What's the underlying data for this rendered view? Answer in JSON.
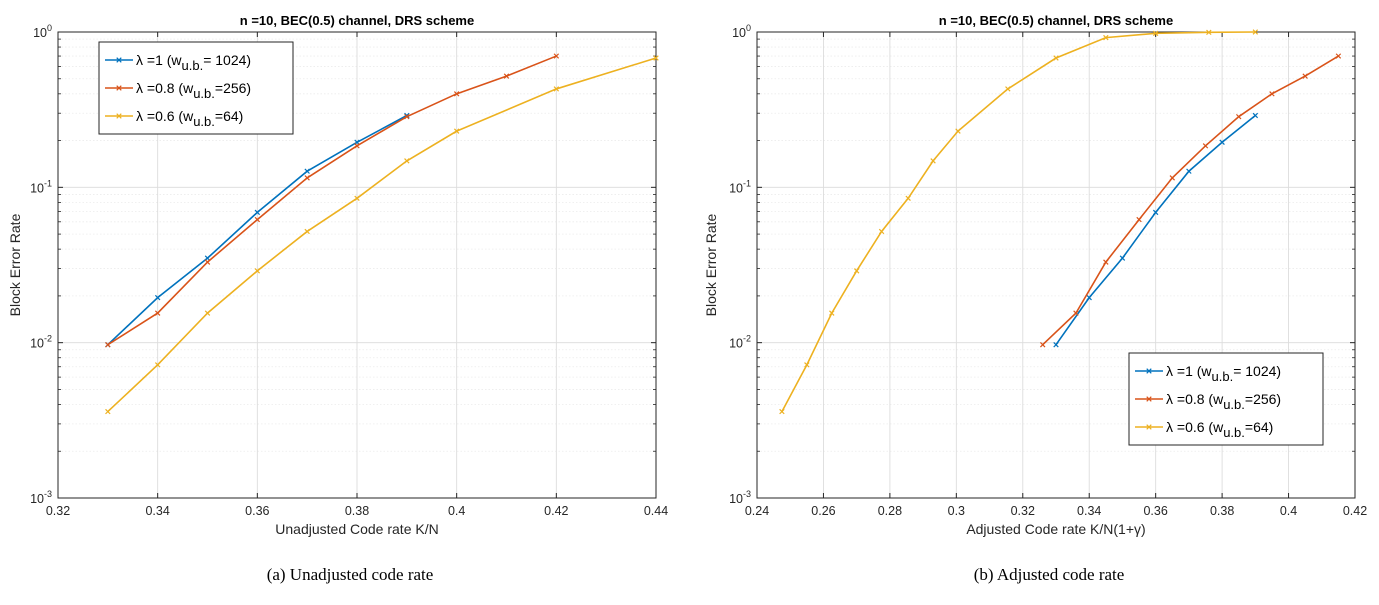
{
  "chart_data": [
    {
      "type": "line",
      "title": "n =10, BEC(0.5) channel, DRS scheme",
      "xlabel": "Unadjusted Code rate K/N",
      "ylabel": "Block Error Rate",
      "xlim": [
        0.32,
        0.44
      ],
      "ylim": [
        0.001,
        1
      ],
      "yscale": "log",
      "grid": true,
      "legend_position": "top-left",
      "caption": "(a) Unadjusted code rate",
      "xticks": [
        "0.32",
        "0.34",
        "0.36",
        "0.38",
        "0.4",
        "0.42",
        "0.44"
      ],
      "yticks": [
        {
          "base": "10",
          "exp": "0"
        },
        {
          "base": "10",
          "exp": "-1"
        },
        {
          "base": "10",
          "exp": "-2"
        },
        {
          "base": "10",
          "exp": "-3"
        }
      ],
      "series": [
        {
          "name_main": "λ =1 (w",
          "name_sub": "u.b.",
          "name_tail": "= 1024)",
          "color": "#0072BD",
          "x": [
            0.33,
            0.34,
            0.35,
            0.36,
            0.37,
            0.38,
            0.39
          ],
          "y": [
            0.0097,
            0.0195,
            0.035,
            0.069,
            0.127,
            0.195,
            0.29
          ]
        },
        {
          "name_main": "λ =0.8 (w",
          "name_sub": "u.b.",
          "name_tail": "=256)",
          "color": "#D95319",
          "x": [
            0.33,
            0.34,
            0.35,
            0.36,
            0.37,
            0.38,
            0.39,
            0.4,
            0.41,
            0.42
          ],
          "y": [
            0.0097,
            0.0155,
            0.033,
            0.062,
            0.115,
            0.185,
            0.285,
            0.4,
            0.52,
            0.7
          ]
        },
        {
          "name_main": "λ =0.6 (w",
          "name_sub": "u.b.",
          "name_tail": "=64)",
          "color": "#EDB120",
          "x": [
            0.33,
            0.34,
            0.35,
            0.36,
            0.37,
            0.38,
            0.39,
            0.4,
            0.42,
            0.44
          ],
          "y": [
            0.0036,
            0.0072,
            0.0155,
            0.029,
            0.052,
            0.085,
            0.148,
            0.23,
            0.43,
            0.68
          ]
        }
      ]
    },
    {
      "type": "line",
      "title": "n =10, BEC(0.5) channel, DRS scheme",
      "xlabel": "Adjusted Code rate K/N(1+γ)",
      "ylabel": "Block Error Rate",
      "xlim": [
        0.24,
        0.42
      ],
      "ylim": [
        0.001,
        1
      ],
      "yscale": "log",
      "grid": true,
      "legend_position": "bottom-right",
      "caption": "(b) Adjusted code rate",
      "xticks": [
        "0.24",
        "0.26",
        "0.28",
        "0.3",
        "0.32",
        "0.34",
        "0.36",
        "0.38",
        "0.4",
        "0.42"
      ],
      "yticks": [
        {
          "base": "10",
          "exp": "0"
        },
        {
          "base": "10",
          "exp": "-1"
        },
        {
          "base": "10",
          "exp": "-2"
        },
        {
          "base": "10",
          "exp": "-3"
        }
      ],
      "series": [
        {
          "name_main": "λ =1 (w",
          "name_sub": "u.b.",
          "name_tail": "= 1024)",
          "color": "#0072BD",
          "x": [
            0.33,
            0.34,
            0.35,
            0.36,
            0.37,
            0.38,
            0.39
          ],
          "y": [
            0.0097,
            0.0195,
            0.035,
            0.069,
            0.127,
            0.195,
            0.29
          ]
        },
        {
          "name_main": "λ =0.8 (w",
          "name_sub": "u.b.",
          "name_tail": "=256)",
          "color": "#D95319",
          "x": [
            0.326,
            0.336,
            0.345,
            0.355,
            0.365,
            0.375,
            0.385,
            0.395,
            0.405,
            0.415
          ],
          "y": [
            0.0097,
            0.0155,
            0.033,
            0.062,
            0.115,
            0.185,
            0.285,
            0.4,
            0.52,
            0.7
          ]
        },
        {
          "name_main": "λ =0.6 (w",
          "name_sub": "u.b.",
          "name_tail": "=64)",
          "color": "#EDB120",
          "x": [
            0.2475,
            0.255,
            0.2625,
            0.27,
            0.2775,
            0.2855,
            0.293,
            0.3005,
            0.3155,
            0.33,
            0.345,
            0.36,
            0.376,
            0.39
          ],
          "y": [
            0.0036,
            0.0072,
            0.0155,
            0.029,
            0.052,
            0.085,
            0.148,
            0.23,
            0.43,
            0.68,
            0.92,
            0.98,
            0.995,
            1.0
          ]
        }
      ]
    }
  ]
}
